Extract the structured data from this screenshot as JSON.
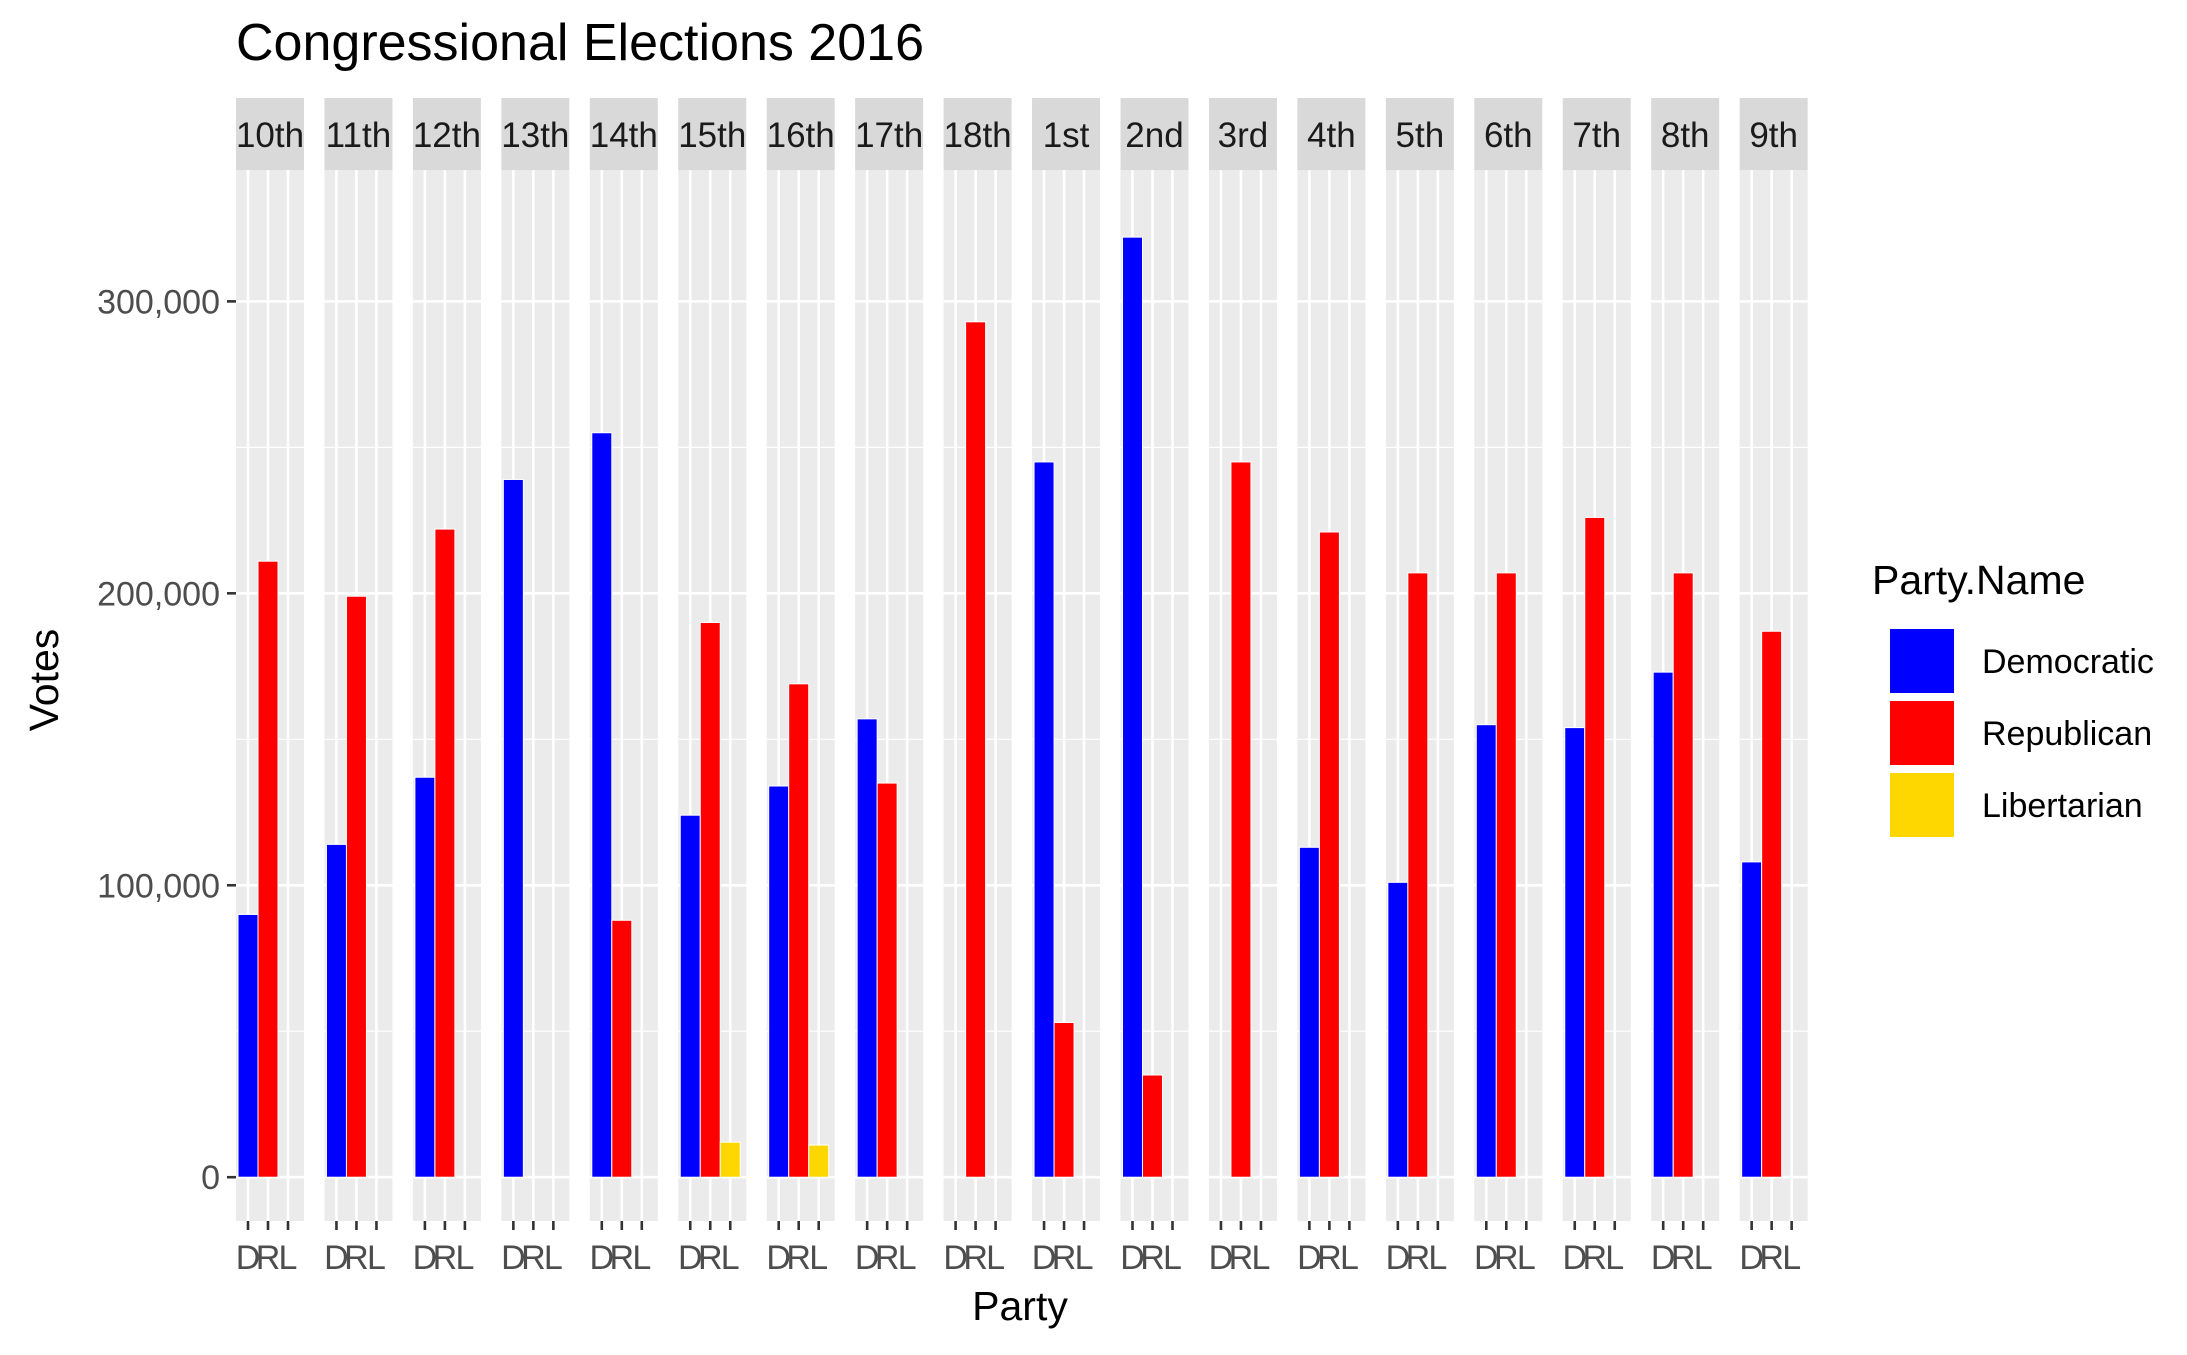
{
  "chart_data": {
    "type": "bar",
    "title": "Congressional Elections 2016",
    "xlabel": "Party",
    "ylabel": "Votes",
    "ylim": [
      -15000,
      345000
    ],
    "y_ticks": [
      0,
      100000,
      200000,
      300000
    ],
    "y_tick_labels": [
      "0",
      "100,000",
      "200,000",
      "300,000"
    ],
    "x_tick_labels": [
      "D",
      "R",
      "L"
    ],
    "grid": true,
    "facets": [
      "10th",
      "11th",
      "12th",
      "13th",
      "14th",
      "15th",
      "16th",
      "17th",
      "18th",
      "1st",
      "2nd",
      "3rd",
      "4th",
      "5th",
      "6th",
      "7th",
      "8th",
      "9th"
    ],
    "legend": {
      "title": "Party.Name",
      "position": "right"
    },
    "series": [
      {
        "name": "Democratic",
        "code": "D",
        "color": "#0000FF",
        "values": [
          90000,
          114000,
          137000,
          239000,
          255000,
          124000,
          134000,
          157000,
          null,
          245000,
          322000,
          null,
          113000,
          101000,
          155000,
          154000,
          173000,
          108000
        ]
      },
      {
        "name": "Republican",
        "code": "R",
        "color": "#FF0000",
        "values": [
          211000,
          199000,
          222000,
          null,
          88000,
          190000,
          169000,
          135000,
          293000,
          53000,
          35000,
          245000,
          221000,
          207000,
          207000,
          226000,
          207000,
          187000
        ]
      },
      {
        "name": "Libertarian",
        "code": "L",
        "color": "#FFD700",
        "values": [
          null,
          null,
          null,
          null,
          null,
          12000,
          11000,
          null,
          null,
          null,
          null,
          null,
          null,
          null,
          null,
          null,
          null,
          null
        ]
      }
    ]
  }
}
